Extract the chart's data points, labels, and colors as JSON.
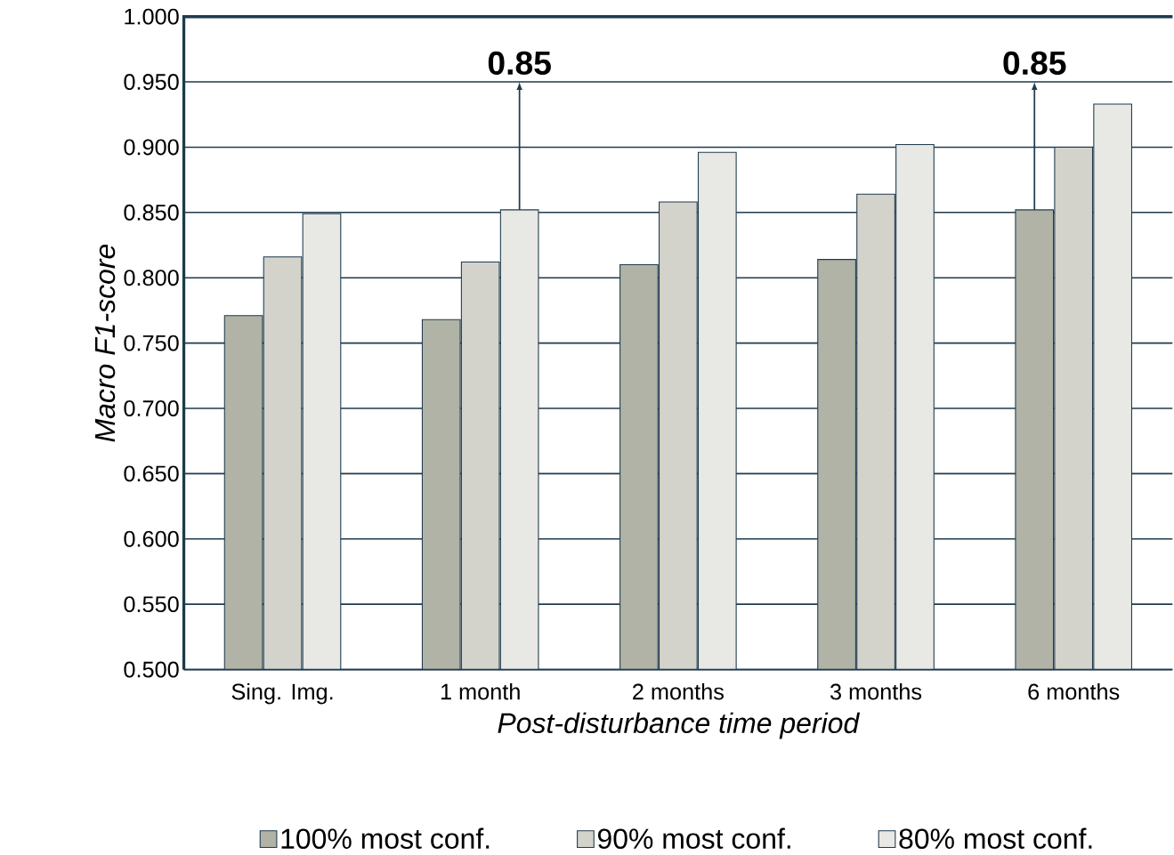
{
  "chart_data": {
    "type": "bar",
    "xlabel": "Post-disturbance time period",
    "ylabel": "Macro F1-score",
    "categories": [
      "Sing. Img.",
      "1 month",
      "2 months",
      "3 months",
      "6 months"
    ],
    "series": [
      {
        "name": "100% most conf.",
        "color": "#b0b3a5",
        "values": [
          0.771,
          0.768,
          0.81,
          0.814,
          0.852
        ]
      },
      {
        "name": "90% most conf.",
        "color": "#d3d3cb",
        "values": [
          0.816,
          0.812,
          0.858,
          0.864,
          0.9
        ]
      },
      {
        "name": "80% most conf.",
        "color": "#e8e8e4",
        "values": [
          0.849,
          0.852,
          0.896,
          0.902,
          0.933
        ]
      }
    ],
    "ylim": [
      0.5,
      1.0
    ],
    "yticks": [
      {
        "value": 0.5,
        "label": "0.500"
      },
      {
        "value": 0.55,
        "label": "0.550"
      },
      {
        "value": 0.6,
        "label": "0.600"
      },
      {
        "value": 0.65,
        "label": "0.650"
      },
      {
        "value": 0.7,
        "label": "0.700"
      },
      {
        "value": 0.75,
        "label": "0.750"
      },
      {
        "value": 0.8,
        "label": "0.800"
      },
      {
        "value": 0.85,
        "label": "0.850"
      },
      {
        "value": 0.9,
        "label": "0.900"
      },
      {
        "value": 0.95,
        "label": "0.950"
      },
      {
        "value": 1.0,
        "label": "1.000"
      }
    ],
    "grid": "y",
    "legend": "bottom",
    "annotations": [
      "0.85",
      "0.85"
    ]
  }
}
